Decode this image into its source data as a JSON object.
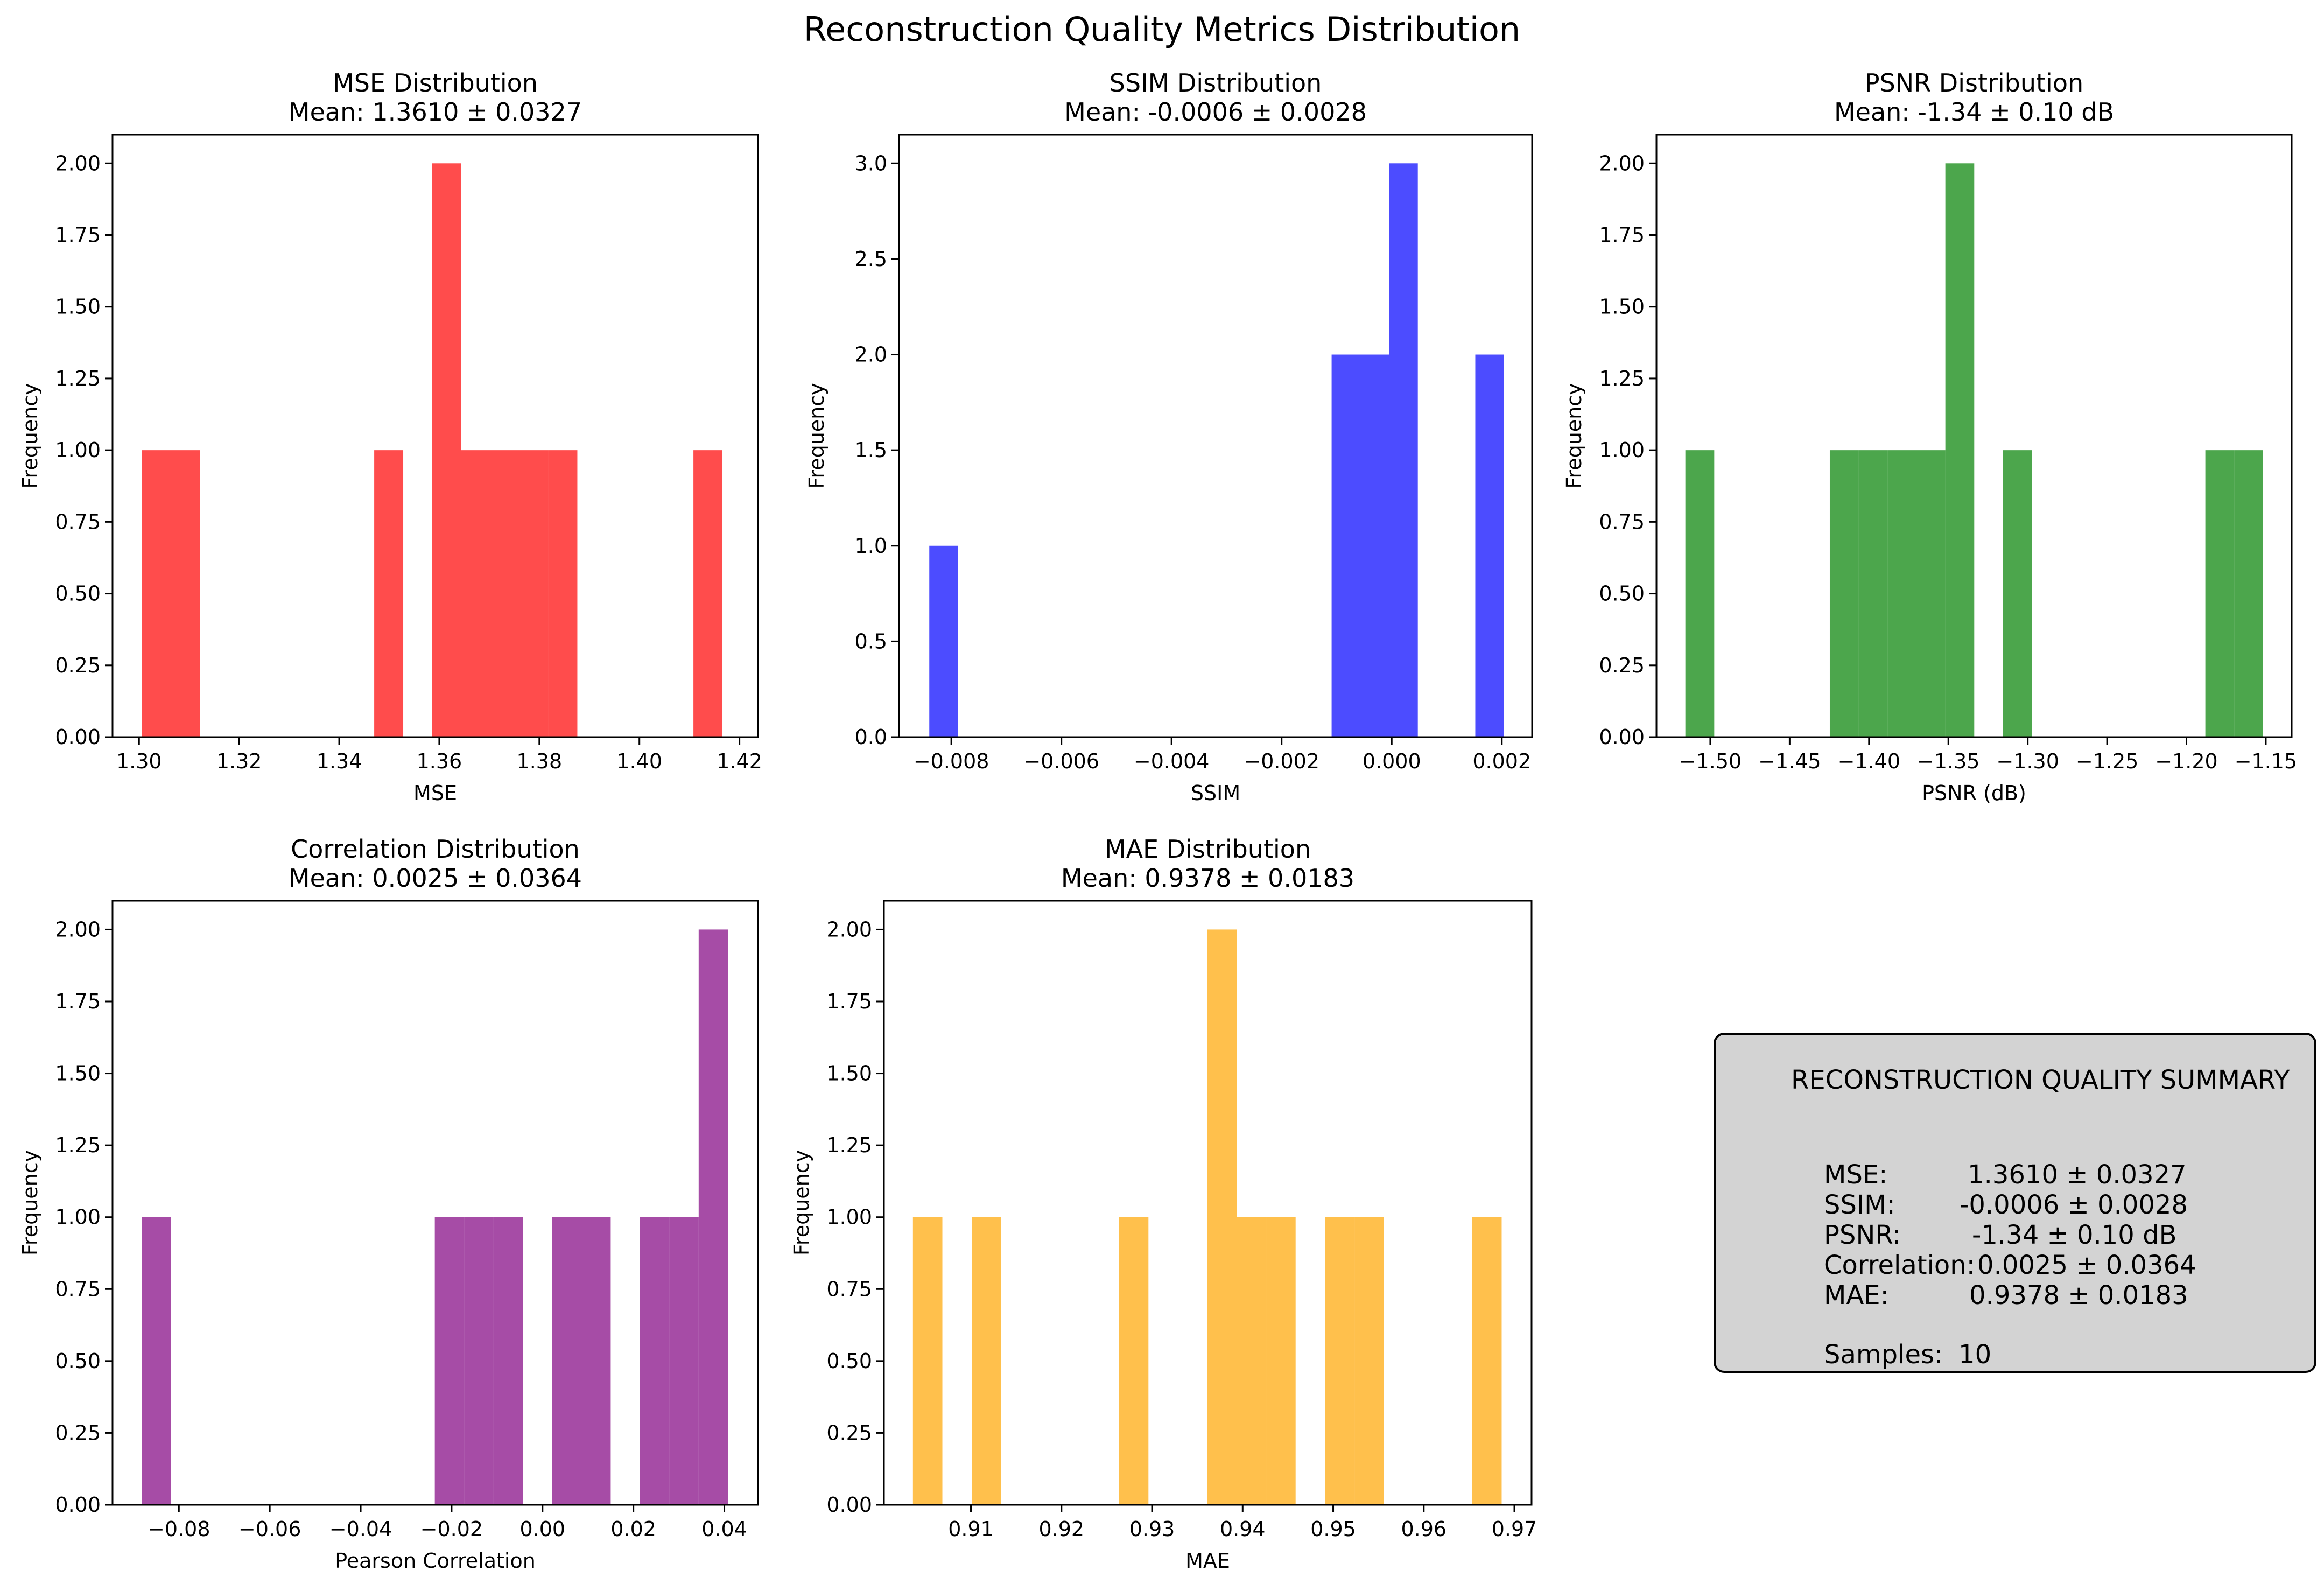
{
  "figure_title": "Reconstruction Quality Metrics Distribution",
  "chart_data": [
    {
      "id": "mse",
      "type": "bar",
      "title": "MSE Distribution",
      "subtitle": "Mean: 1.3610 ± 0.0327",
      "xlabel": "MSE",
      "ylabel": "Frequency",
      "color": "#ff0000",
      "alpha": 0.7,
      "xlim": [
        1.2947,
        1.4237
      ],
      "ylim": [
        0,
        2.1
      ],
      "xticks": [
        1.3,
        1.32,
        1.34,
        1.36,
        1.38,
        1.4,
        1.42
      ],
      "xtick_labels": [
        "1.30",
        "1.32",
        "1.34",
        "1.36",
        "1.38",
        "1.40",
        "1.42"
      ],
      "yticks": [
        0,
        0.25,
        0.5,
        0.75,
        1.0,
        1.25,
        1.5,
        1.75,
        2.0
      ],
      "ytick_labels": [
        "0.00",
        "0.25",
        "0.50",
        "0.75",
        "1.00",
        "1.25",
        "1.50",
        "1.75",
        "2.00"
      ],
      "bin_start": 1.3006,
      "bin_width": 0.0058,
      "values": [
        1,
        1,
        0,
        0,
        0,
        0,
        0,
        0,
        1,
        0,
        2,
        1,
        1,
        1,
        1,
        0,
        0,
        0,
        0,
        1
      ]
    },
    {
      "id": "ssim",
      "type": "bar",
      "title": "SSIM Distribution",
      "subtitle": "Mean: -0.0006 ± 0.0028",
      "xlabel": "SSIM",
      "ylabel": "Frequency",
      "color": "#0000ff",
      "alpha": 0.7,
      "xlim": [
        -0.00895,
        0.00255
      ],
      "ylim": [
        0,
        3.15
      ],
      "xticks": [
        -0.008,
        -0.006,
        -0.004,
        -0.002,
        0.0,
        0.002
      ],
      "xtick_labels": [
        "−0.008",
        "−0.006",
        "−0.004",
        "−0.002",
        "0.000",
        "0.002"
      ],
      "yticks": [
        0,
        0.5,
        1.0,
        1.5,
        2.0,
        2.5,
        3.0
      ],
      "ytick_labels": [
        "0.0",
        "0.5",
        "1.0",
        "1.5",
        "2.0",
        "2.5",
        "3.0"
      ],
      "bin_start": -0.0084,
      "bin_width": 0.000522,
      "values": [
        1,
        0,
        0,
        0,
        0,
        0,
        0,
        0,
        0,
        0,
        0,
        0,
        0,
        0,
        2,
        2,
        3,
        0,
        0,
        2
      ]
    },
    {
      "id": "psnr",
      "type": "bar",
      "title": "PSNR Distribution",
      "subtitle": "Mean: -1.34 ± 0.10 dB",
      "xlabel": "PSNR (dB)",
      "ylabel": "Frequency",
      "color": "#008000",
      "alpha": 0.7,
      "xlim": [
        -1.5339,
        -1.1337
      ],
      "ylim": [
        0,
        2.1
      ],
      "xticks": [
        -1.5,
        -1.45,
        -1.4,
        -1.35,
        -1.3,
        -1.25,
        -1.2,
        -1.15
      ],
      "xtick_labels": [
        "−1.50",
        "−1.45",
        "−1.40",
        "−1.35",
        "−1.30",
        "−1.25",
        "−1.20",
        "−1.15"
      ],
      "yticks": [
        0,
        0.25,
        0.5,
        0.75,
        1.0,
        1.25,
        1.5,
        1.75,
        2.0
      ],
      "ytick_labels": [
        "0.00",
        "0.25",
        "0.50",
        "0.75",
        "1.00",
        "1.25",
        "1.50",
        "1.75",
        "2.00"
      ],
      "bin_start": -1.5157,
      "bin_width": 0.0182,
      "values": [
        1,
        0,
        0,
        0,
        0,
        1,
        1,
        1,
        1,
        2,
        0,
        1,
        0,
        0,
        0,
        0,
        0,
        0,
        1,
        1
      ]
    },
    {
      "id": "correlation",
      "type": "bar",
      "title": "Correlation Distribution",
      "subtitle": "Mean: 0.0025 ± 0.0364",
      "xlabel": "Pearson Correlation",
      "ylabel": "Frequency",
      "color": "#800080",
      "alpha": 0.7,
      "xlim": [
        -0.0946,
        0.0474
      ],
      "ylim": [
        0,
        2.1
      ],
      "xticks": [
        -0.08,
        -0.06,
        -0.04,
        -0.02,
        0.0,
        0.02,
        0.04
      ],
      "xtick_labels": [
        "−0.08",
        "−0.06",
        "−0.04",
        "−0.02",
        "0.00",
        "0.02",
        "0.04"
      ],
      "yticks": [
        0,
        0.25,
        0.5,
        0.75,
        1.0,
        1.25,
        1.5,
        1.75,
        2.0
      ],
      "ytick_labels": [
        "0.00",
        "0.25",
        "0.50",
        "0.75",
        "1.00",
        "1.25",
        "1.50",
        "1.75",
        "2.00"
      ],
      "bin_start": -0.0882,
      "bin_width": 0.00645,
      "values": [
        1,
        0,
        0,
        0,
        0,
        0,
        0,
        0,
        0,
        0,
        1,
        1,
        1,
        0,
        1,
        1,
        0,
        1,
        1,
        2
      ]
    },
    {
      "id": "mae",
      "type": "bar",
      "title": "MAE Distribution",
      "subtitle": "Mean: 0.9378 ± 0.0183",
      "xlabel": "MAE",
      "ylabel": "Frequency",
      "color": "#ffa500",
      "alpha": 0.7,
      "xlim": [
        0.9004,
        0.9719
      ],
      "ylim": [
        0,
        2.1
      ],
      "xticks": [
        0.91,
        0.92,
        0.93,
        0.94,
        0.95,
        0.96,
        0.97
      ],
      "xtick_labels": [
        "0.91",
        "0.92",
        "0.93",
        "0.94",
        "0.95",
        "0.96",
        "0.97"
      ],
      "yticks": [
        0,
        0.25,
        0.5,
        0.75,
        1.0,
        1.25,
        1.5,
        1.75,
        2.0
      ],
      "ytick_labels": [
        "0.00",
        "0.25",
        "0.50",
        "0.75",
        "1.00",
        "1.25",
        "1.50",
        "1.75",
        "2.00"
      ],
      "bin_start": 0.9036,
      "bin_width": 0.00325,
      "values": [
        1,
        0,
        1,
        0,
        0,
        0,
        0,
        1,
        0,
        0,
        2,
        1,
        1,
        0,
        1,
        1,
        0,
        0,
        0,
        1
      ]
    }
  ],
  "summary": {
    "title": "RECONSTRUCTION QUALITY SUMMARY",
    "rows": [
      {
        "label": "MSE:",
        "value": "1.3610 ± 0.0327"
      },
      {
        "label": "SSIM:",
        "value": "-0.0006 ± 0.0028"
      },
      {
        "label": "PSNR:",
        "value": "-1.34 ± 0.10 dB"
      },
      {
        "label": "Correlation:",
        "value": "0.0025 ± 0.0364"
      },
      {
        "label": "MAE:",
        "value": "0.9378 ± 0.0183"
      }
    ],
    "samples_label": "Samples:",
    "samples_value": "10"
  }
}
